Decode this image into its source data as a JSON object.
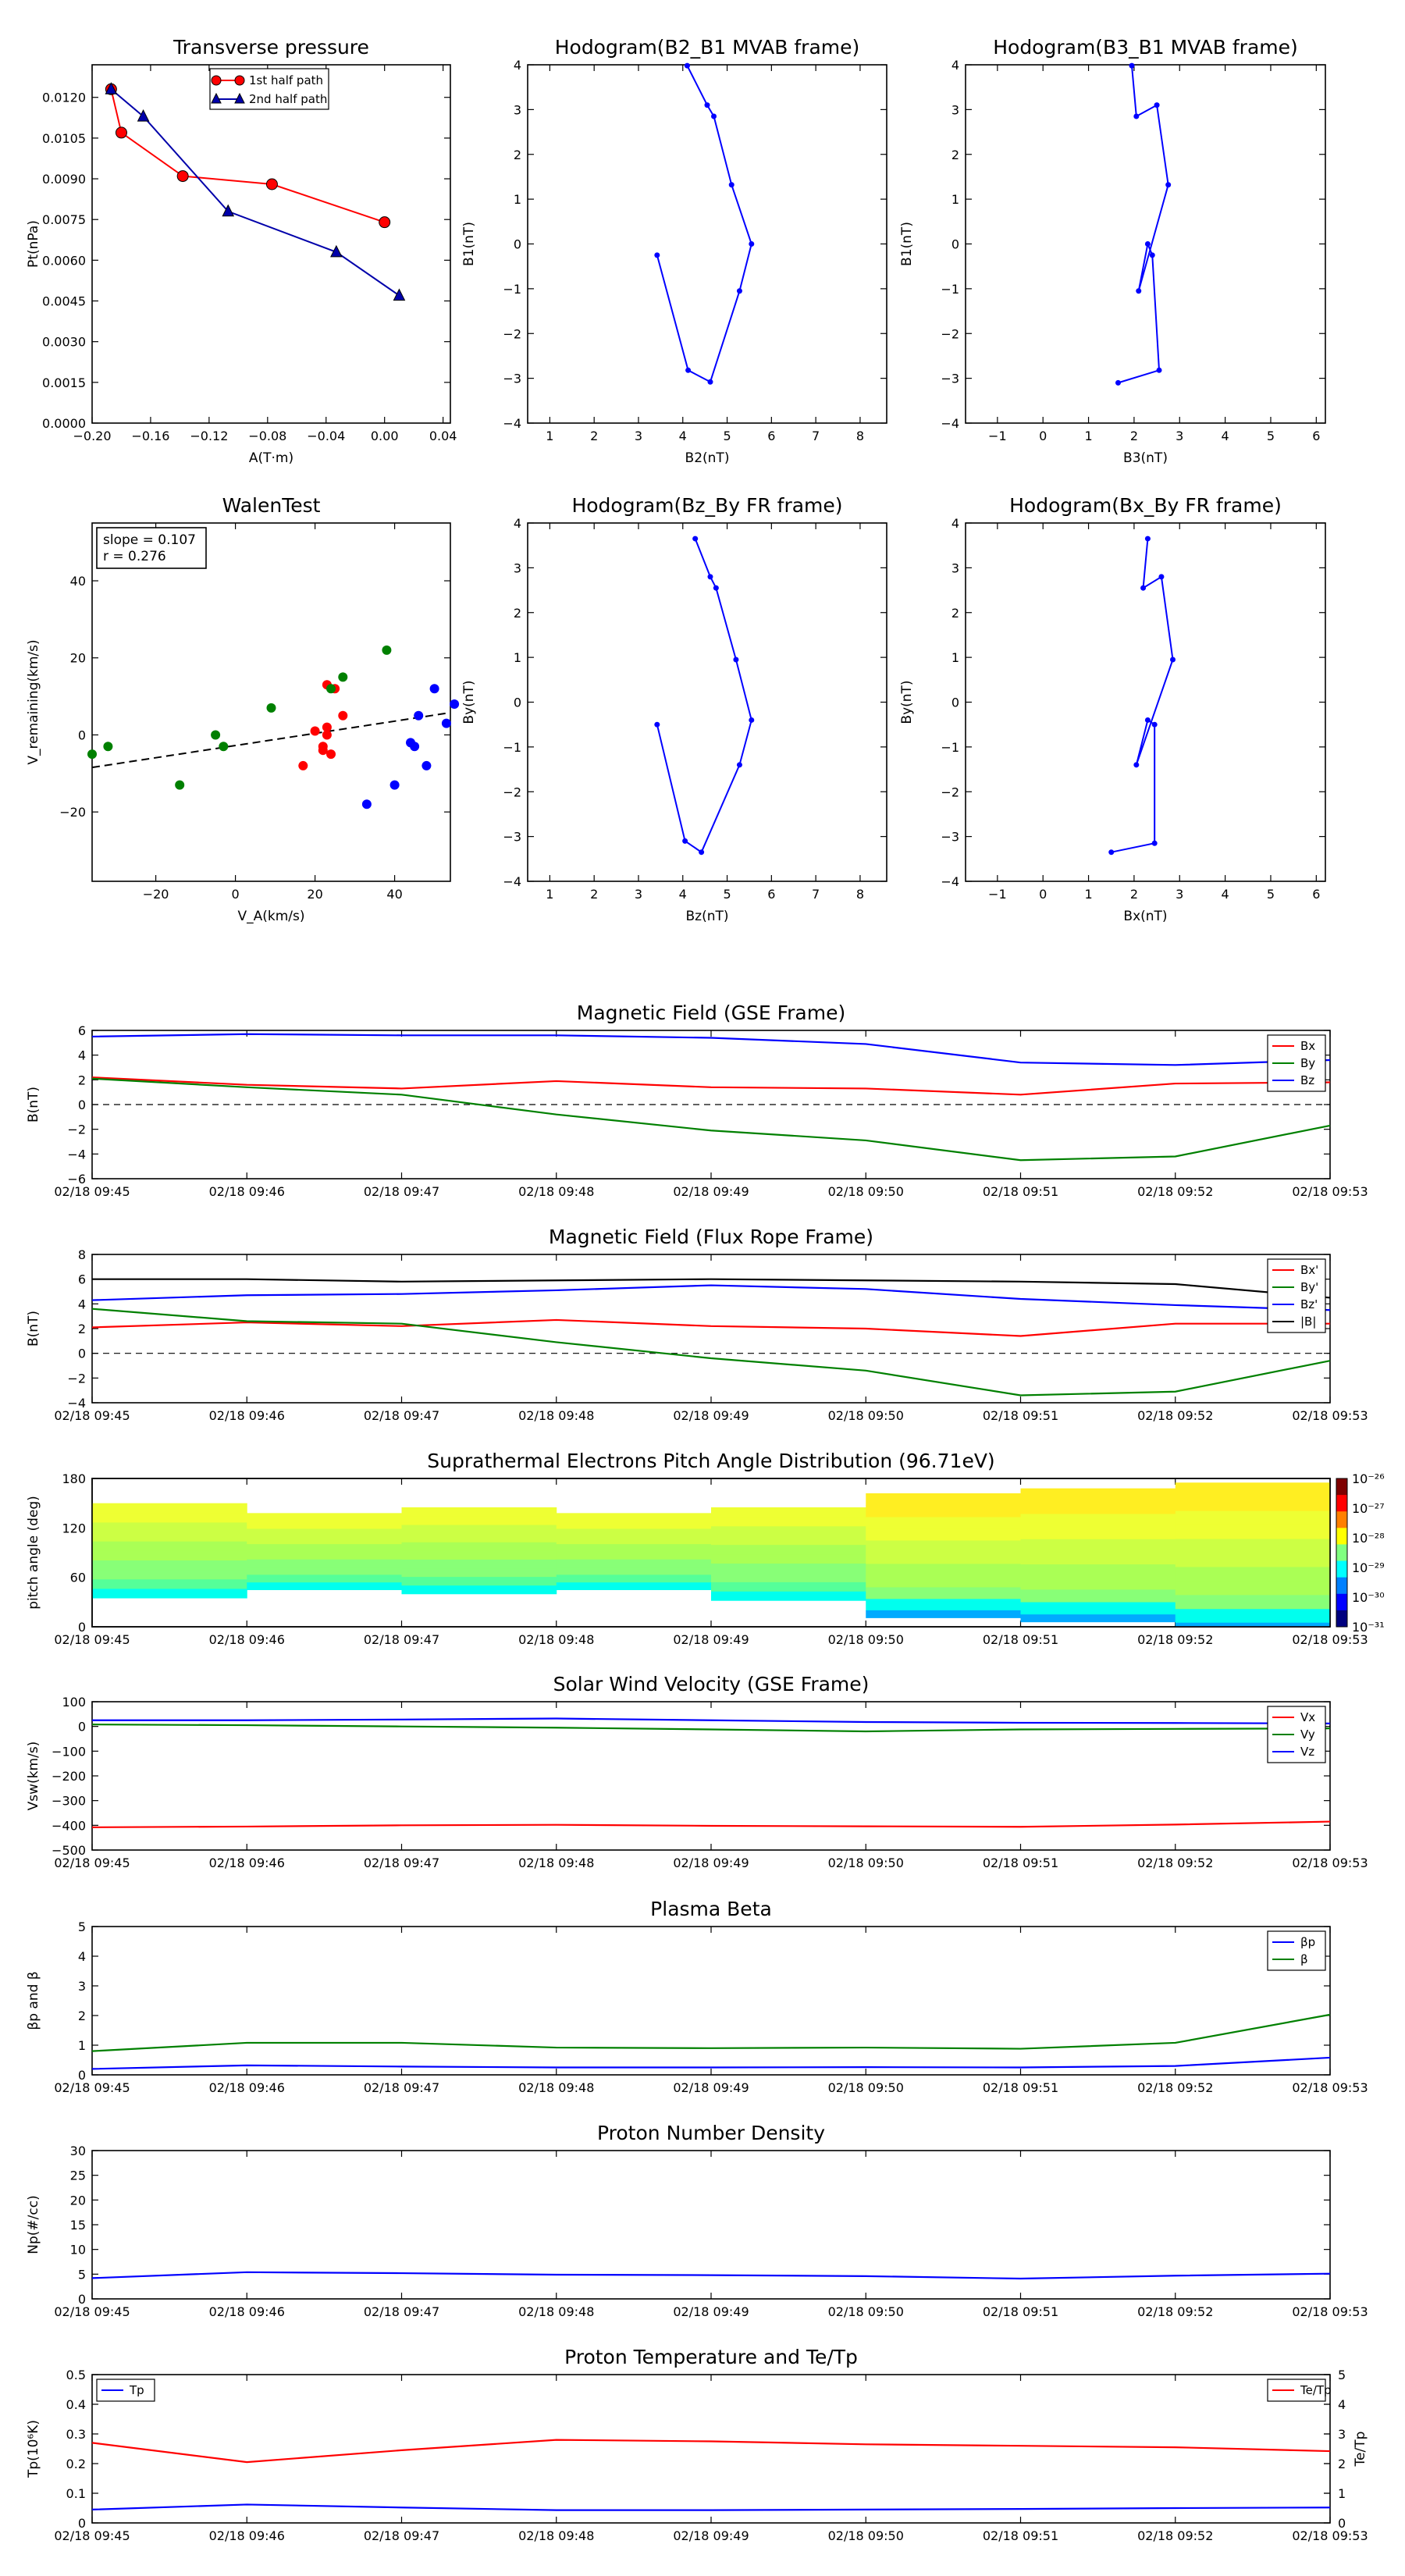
{
  "chart_data": [
    {
      "id": "pt",
      "type": "line",
      "title": "Transverse pressure",
      "xlabel": "A(T·m)",
      "ylabel": "Pt(nPa)",
      "xlim": [
        -0.2,
        0.045
      ],
      "ylim": [
        0,
        0.0132
      ],
      "xticks": [
        "−0.20",
        "−0.16",
        "−0.12",
        "−0.08",
        "−0.04",
        "0.00",
        "0.04"
      ],
      "xtick_vals": [
        -0.2,
        -0.16,
        -0.12,
        -0.08,
        -0.04,
        0.0,
        0.04
      ],
      "yticks": [
        "0.0000",
        "0.0015",
        "0.0030",
        "0.0045",
        "0.0060",
        "0.0075",
        "0.0090",
        "0.0105",
        "0.0120"
      ],
      "ytick_vals": [
        0,
        0.0015,
        0.003,
        0.0045,
        0.006,
        0.0075,
        0.009,
        0.0105,
        0.012
      ],
      "series": [
        {
          "name": "1st half path",
          "color": "#ff0000",
          "marker": "circle",
          "x": [
            0.0,
            -0.077,
            -0.138,
            -0.18,
            -0.187
          ],
          "y": [
            0.0074,
            0.0088,
            0.0091,
            0.0107,
            0.0123
          ]
        },
        {
          "name": "2nd half path",
          "color": "#0000aa",
          "marker": "triangle",
          "x": [
            -0.187,
            -0.165,
            -0.107,
            -0.033,
            0.01
          ],
          "y": [
            0.0123,
            0.0113,
            0.0078,
            0.0063,
            0.0047
          ]
        }
      ],
      "legend": "top-center"
    },
    {
      "id": "h1",
      "type": "line",
      "title": "Hodogram(B2_B1 MVAB frame)",
      "xlabel": "B2(nT)",
      "ylabel": "B1(nT)",
      "xlim": [
        0.5,
        8.6
      ],
      "ylim": [
        -4,
        4
      ],
      "xtick_vals": [
        1,
        2,
        3,
        4,
        5,
        6,
        7,
        8
      ],
      "ytick_vals": [
        -4,
        -3,
        -2,
        -1,
        0,
        1,
        2,
        3,
        4
      ],
      "series": [
        {
          "color": "#0000ff",
          "x": [
            3.42,
            4.12,
            4.62,
            5.28,
            5.55,
            5.1,
            4.7,
            4.55,
            4.1
          ],
          "y": [
            -0.25,
            -2.82,
            -3.08,
            -1.05,
            0.0,
            1.32,
            2.85,
            3.1,
            3.98
          ]
        }
      ]
    },
    {
      "id": "h2",
      "type": "line",
      "title": "Hodogram(B3_B1 MVAB frame)",
      "xlabel": "B3(nT)",
      "ylabel": "B1(nT)",
      "xlim": [
        -1.7,
        6.2
      ],
      "ylim": [
        -4,
        4
      ],
      "xtick_vals": [
        -1,
        0,
        1,
        2,
        3,
        4,
        5,
        6
      ],
      "ytick_vals": [
        -4,
        -3,
        -2,
        -1,
        0,
        1,
        2,
        3,
        4
      ],
      "series": [
        {
          "color": "#0000ff",
          "x": [
            1.65,
            2.55,
            2.4,
            2.3,
            2.1,
            2.75,
            2.5,
            2.05,
            1.95
          ],
          "y": [
            -3.1,
            -2.82,
            -0.25,
            0.0,
            -1.05,
            1.32,
            3.1,
            2.85,
            3.98
          ]
        }
      ]
    },
    {
      "id": "walen",
      "type": "scatter",
      "title": "WalenTest",
      "xlabel": "V_A(km/s)",
      "ylabel": "V_remaining(km/s)",
      "xlim": [
        -36,
        54
      ],
      "ylim": [
        -38,
        55
      ],
      "xtick_vals": [
        -20,
        0,
        20,
        40
      ],
      "ytick_vals": [
        -20,
        0,
        20,
        40
      ],
      "annotation": [
        "slope = 0.107",
        "r = 0.276"
      ],
      "fit": {
        "slope": 0.107,
        "intercept": -0.6
      },
      "series": [
        {
          "color": "#ff0000",
          "x": [
            23,
            25,
            27,
            20,
            22,
            24,
            22,
            17,
            23,
            23
          ],
          "y": [
            13,
            12,
            5,
            1,
            -4,
            -5,
            -3,
            -8,
            0,
            2
          ]
        },
        {
          "color": "#008000",
          "x": [
            -36,
            -32,
            -14,
            -5,
            -3,
            9,
            24,
            27,
            38
          ],
          "y": [
            -5,
            -3,
            -13,
            0,
            -3,
            7,
            12,
            15,
            22
          ]
        },
        {
          "color": "#0000ff",
          "x": [
            33,
            40,
            44,
            45,
            48,
            50,
            53,
            55,
            46
          ],
          "y": [
            -18,
            -13,
            -2,
            -3,
            -8,
            12,
            3,
            8,
            5
          ]
        }
      ]
    },
    {
      "id": "h3",
      "type": "line",
      "title": "Hodogram(Bz_By FR frame)",
      "xlabel": "Bz(nT)",
      "ylabel": "By(nT)",
      "xlim": [
        0.5,
        8.6
      ],
      "ylim": [
        -4,
        4
      ],
      "xtick_vals": [
        1,
        2,
        3,
        4,
        5,
        6,
        7,
        8
      ],
      "ytick_vals": [
        -4,
        -3,
        -2,
        -1,
        0,
        1,
        2,
        3,
        4
      ],
      "series": [
        {
          "color": "#0000ff",
          "x": [
            3.42,
            4.05,
            4.42,
            5.28,
            5.55,
            5.2,
            4.75,
            4.62,
            4.28
          ],
          "y": [
            -0.5,
            -3.1,
            -3.35,
            -1.4,
            -0.4,
            0.95,
            2.55,
            2.8,
            3.65
          ]
        }
      ]
    },
    {
      "id": "h4",
      "type": "line",
      "title": "Hodogram(Bx_By FR frame)",
      "xlabel": "Bx(nT)",
      "ylabel": "By(nT)",
      "xlim": [
        -1.7,
        6.2
      ],
      "ylim": [
        -4,
        4
      ],
      "xtick_vals": [
        -1,
        0,
        1,
        2,
        3,
        4,
        5,
        6
      ],
      "ytick_vals": [
        -4,
        -3,
        -2,
        -1,
        0,
        1,
        2,
        3,
        4
      ],
      "series": [
        {
          "color": "#0000ff",
          "x": [
            1.5,
            2.45,
            2.45,
            2.3,
            2.05,
            2.85,
            2.6,
            2.2,
            2.3
          ],
          "y": [
            -3.35,
            -3.15,
            -0.5,
            -0.4,
            -1.4,
            0.95,
            2.8,
            2.55,
            3.65
          ]
        }
      ]
    },
    {
      "id": "mf",
      "type": "line",
      "title": "Magnetic Field (GSE Frame)",
      "xlabel": "",
      "ylabel": "B(nT)",
      "ylim": [
        -6,
        6
      ],
      "ytick_vals": [
        -6,
        -4,
        -2,
        0,
        2,
        4,
        6
      ],
      "zero_line": true,
      "series": [
        {
          "name": "Bx",
          "color": "#ff0000",
          "values": [
            2.2,
            1.6,
            1.3,
            1.9,
            1.4,
            1.3,
            0.8,
            1.7,
            1.8
          ]
        },
        {
          "name": "By",
          "color": "#008000",
          "values": [
            2.1,
            1.4,
            0.8,
            -0.8,
            -2.1,
            -2.9,
            -4.5,
            -4.2,
            -1.7
          ]
        },
        {
          "name": "Bz",
          "color": "#0000ff",
          "values": [
            5.5,
            5.7,
            5.6,
            5.6,
            5.4,
            4.9,
            3.4,
            3.2,
            3.6
          ]
        }
      ],
      "legend": "top-right"
    },
    {
      "id": "mfr",
      "type": "line",
      "title": "Magnetic Field (Flux Rope Frame)",
      "xlabel": "",
      "ylabel": "B(nT)",
      "ylim": [
        -4,
        8
      ],
      "ytick_vals": [
        -4,
        -2,
        0,
        2,
        4,
        6,
        8
      ],
      "zero_line": true,
      "series": [
        {
          "name": "Bx'",
          "color": "#ff0000",
          "values": [
            2.1,
            2.5,
            2.2,
            2.7,
            2.2,
            2.0,
            1.4,
            2.4,
            2.4
          ]
        },
        {
          "name": "By'",
          "color": "#008000",
          "values": [
            3.6,
            2.6,
            2.4,
            0.9,
            -0.4,
            -1.4,
            -3.4,
            -3.1,
            -0.6
          ]
        },
        {
          "name": "Bz'",
          "color": "#0000ff",
          "values": [
            4.3,
            4.7,
            4.8,
            5.1,
            5.5,
            5.2,
            4.4,
            3.9,
            3.5
          ]
        },
        {
          "name": "|B|",
          "color": "#000000",
          "values": [
            6.0,
            6.0,
            5.8,
            5.9,
            6.0,
            5.9,
            5.8,
            5.6,
            4.5
          ]
        }
      ],
      "legend": "top-right"
    },
    {
      "id": "pad",
      "type": "heatmap",
      "title": "Suprathermal Electrons Pitch Angle Distribution (96.71eV)",
      "xlabel": "",
      "ylabel": "pitch angle (deg)",
      "ylim": [
        0,
        180
      ],
      "ytick_vals": [
        0,
        60,
        120,
        180
      ],
      "colorbar": {
        "labels": [
          "10⁻²⁶",
          "10⁻²⁷",
          "10⁻²⁸",
          "10⁻²⁹",
          "10⁻³⁰",
          "10⁻³¹"
        ]
      }
    },
    {
      "id": "vsw",
      "type": "line",
      "title": "Solar Wind Velocity (GSE Frame)",
      "xlabel": "",
      "ylabel": "Vsw(km/s)",
      "ylim": [
        -500,
        100
      ],
      "ytick_vals": [
        -500,
        -400,
        -300,
        -200,
        -100,
        0,
        100
      ],
      "series": [
        {
          "name": "Vx",
          "color": "#ff0000",
          "values": [
            -408,
            -405,
            -400,
            -398,
            -402,
            -404,
            -406,
            -397,
            -385
          ]
        },
        {
          "name": "Vy",
          "color": "#008000",
          "values": [
            8,
            5,
            0,
            -5,
            -12,
            -20,
            -12,
            -10,
            -8
          ]
        },
        {
          "name": "Vz",
          "color": "#0000ff",
          "values": [
            25,
            25,
            28,
            32,
            25,
            18,
            15,
            14,
            12
          ]
        }
      ],
      "legend": "top-right"
    },
    {
      "id": "beta",
      "type": "line",
      "title": "Plasma Beta",
      "xlabel": "",
      "ylabel": "βp and β",
      "ylim": [
        0,
        5
      ],
      "ytick_vals": [
        0,
        1,
        2,
        3,
        4,
        5
      ],
      "series": [
        {
          "name": "βp",
          "color": "#0000ff",
          "values": [
            0.2,
            0.32,
            0.28,
            0.25,
            0.25,
            0.26,
            0.25,
            0.3,
            0.58
          ]
        },
        {
          "name": "β",
          "color": "#008000",
          "values": [
            0.8,
            1.08,
            1.08,
            0.92,
            0.9,
            0.92,
            0.88,
            1.08,
            2.03
          ]
        }
      ],
      "legend": "top-right"
    },
    {
      "id": "np",
      "type": "line",
      "title": "Proton Number Density",
      "xlabel": "",
      "ylabel": "Np(#/cc)",
      "ylim": [
        0,
        30
      ],
      "ytick_vals": [
        0,
        5,
        10,
        15,
        20,
        25,
        30
      ],
      "series": [
        {
          "color": "#0000ff",
          "values": [
            4.2,
            5.4,
            5.2,
            4.9,
            4.8,
            4.6,
            4.1,
            4.7,
            5.1
          ]
        }
      ]
    },
    {
      "id": "tp",
      "type": "line",
      "title": "Proton Temperature and Te/Tp",
      "xlabel": "",
      "ylabel": "Tp(10⁶K)",
      "ylim": [
        0,
        0.5
      ],
      "ytick_vals": [
        0,
        0.1,
        0.2,
        0.3,
        0.4,
        0.5
      ],
      "ylabel_right": "Te/Tp",
      "ylim_right": [
        0,
        5
      ],
      "ytick_vals_right": [
        0,
        1,
        2,
        3,
        4,
        5
      ],
      "series": [
        {
          "name": "Tp",
          "color": "#0000ff",
          "axis": "left",
          "values": [
            0.045,
            0.062,
            0.052,
            0.043,
            0.043,
            0.045,
            0.047,
            0.05,
            0.052
          ]
        },
        {
          "name": "Te/Tp",
          "color": "#ff0000",
          "axis": "right",
          "values": [
            2.7,
            2.05,
            2.45,
            2.8,
            2.75,
            2.65,
            2.6,
            2.55,
            2.42
          ]
        }
      ],
      "legend_left": "top-left",
      "legend_right": "top-right"
    }
  ],
  "time_axis": [
    "02/18 09:45",
    "02/18 09:46",
    "02/18 09:47",
    "02/18 09:48",
    "02/18 09:49",
    "02/18 09:50",
    "02/18 09:51",
    "02/18 09:52",
    "02/18 09:53"
  ]
}
